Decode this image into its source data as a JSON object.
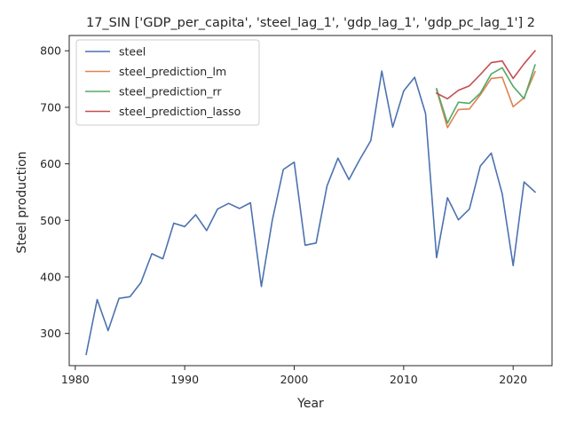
{
  "chart_data": {
    "type": "line",
    "title": "17_SIN ['GDP_per_capita', 'steel_lag_1', 'gdp_lag_1', 'gdp_pc_lag_1'] 2",
    "xlabel": "Year",
    "ylabel": "Steel production",
    "xlim": [
      1979.45,
      2023.55
    ],
    "ylim": [
      243,
      827
    ],
    "xticks": [
      1980,
      1990,
      2000,
      2010,
      2020
    ],
    "yticks": [
      300,
      400,
      500,
      600,
      700,
      800
    ],
    "grid": false,
    "legend_position": "upper-left",
    "series": [
      {
        "name": "steel",
        "color": "#4c72b0",
        "x": [
          1981,
          1982,
          1983,
          1984,
          1985,
          1986,
          1987,
          1988,
          1989,
          1990,
          1991,
          1992,
          1993,
          1994,
          1995,
          1996,
          1997,
          1998,
          1999,
          2000,
          2001,
          2002,
          2003,
          2004,
          2005,
          2006,
          2007,
          2008,
          2009,
          2010,
          2011,
          2012,
          2013,
          2014,
          2015,
          2016,
          2017,
          2018,
          2019,
          2020,
          2021,
          2022
        ],
        "values": [
          263,
          360,
          305,
          362,
          365,
          390,
          441,
          432,
          495,
          489,
          510,
          482,
          520,
          530,
          521,
          531,
          383,
          500,
          590,
          603,
          456,
          460,
          561,
          610,
          572,
          608,
          641,
          764,
          665,
          729,
          753,
          689,
          434,
          540,
          501,
          520,
          596,
          619,
          547,
          420,
          568,
          550
        ]
      },
      {
        "name": "steel_prediction_lm",
        "color": "#dd8452",
        "x": [
          2013,
          2014,
          2015,
          2016,
          2017,
          2018,
          2019,
          2020,
          2021,
          2022
        ],
        "values": [
          731,
          664,
          696,
          697,
          722,
          751,
          753,
          701,
          717,
          763
        ]
      },
      {
        "name": "steel_prediction_rr",
        "color": "#55a868",
        "x": [
          2013,
          2014,
          2015,
          2016,
          2017,
          2018,
          2019,
          2020,
          2021,
          2022
        ],
        "values": [
          733,
          672,
          709,
          707,
          725,
          759,
          770,
          737,
          715,
          775
        ]
      },
      {
        "name": "steel_prediction_lasso",
        "color": "#c44e52",
        "x": [
          2013,
          2014,
          2015,
          2016,
          2017,
          2018,
          2019,
          2020,
          2021,
          2022
        ],
        "values": [
          725,
          715,
          730,
          738,
          758,
          779,
          782,
          751,
          777,
          800
        ]
      }
    ]
  }
}
